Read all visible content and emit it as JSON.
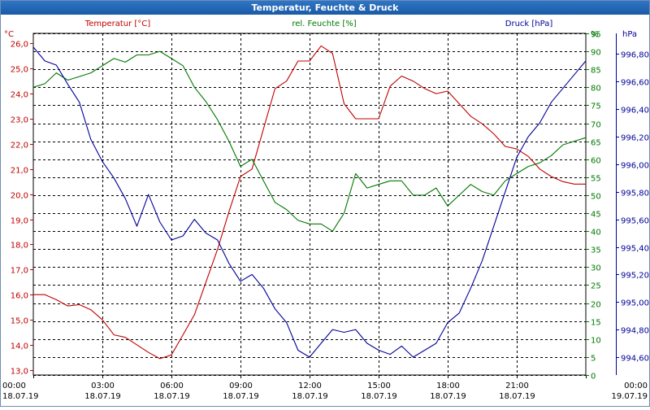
{
  "window": {
    "title": "Temperatur, Feuchte & Druck"
  },
  "colors": {
    "temperature": "#c00000",
    "humidity": "#007700",
    "pressure": "#000099",
    "grid": "#000000",
    "text": "#000000"
  },
  "chart_data": {
    "type": "line",
    "title": "Temperatur, Feuchte & Druck",
    "grid": true,
    "x_ticks": [
      {
        "time": "00:00",
        "date": "18.07.19"
      },
      {
        "time": "03:00",
        "date": "18.07.19"
      },
      {
        "time": "06:00",
        "date": "18.07.19"
      },
      {
        "time": "09:00",
        "date": "18.07.19"
      },
      {
        "time": "12:00",
        "date": "18.07.19"
      },
      {
        "time": "15:00",
        "date": "18.07.19"
      },
      {
        "time": "18:00",
        "date": "18.07.19"
      },
      {
        "time": "21:00",
        "date": "18.07.19"
      },
      {
        "time": "00:00",
        "date": "19.07.19"
      }
    ],
    "xlim": [
      0,
      24
    ],
    "axes": {
      "temperature": {
        "label": "Temperatur [°C]",
        "unit": "°C",
        "ylim": [
          12.8,
          26.4
        ],
        "ticks": [
          "13,0",
          "14,0",
          "15,0",
          "16,0",
          "17,0",
          "18,0",
          "19,0",
          "20,0",
          "21,0",
          "22,0",
          "23,0",
          "24,0",
          "25,0",
          "26,0"
        ]
      },
      "humidity": {
        "label": "rel. Feuchte [%]",
        "unit": "%",
        "ylim": [
          0,
          95
        ],
        "ticks": [
          "0",
          "5",
          "10",
          "15",
          "20",
          "25",
          "30",
          "35",
          "40",
          "45",
          "50",
          "55",
          "60",
          "65",
          "70",
          "75",
          "80",
          "85",
          "90",
          "95"
        ]
      },
      "pressure": {
        "label": "Druck [hPa]",
        "unit": "hPa",
        "ylim": [
          994.47,
          996.95
        ],
        "ticks": [
          "994,60",
          "994,80",
          "995,00",
          "995,20",
          "995,40",
          "995,60",
          "995,80",
          "996,00",
          "996,20",
          "996,40",
          "996,60",
          "996,80"
        ]
      }
    },
    "series": [
      {
        "name": "Temperatur [°C]",
        "axis": "temperature",
        "x": [
          0,
          0.5,
          1,
          1.5,
          2,
          2.5,
          3,
          3.5,
          4,
          4.5,
          5,
          5.5,
          6,
          6.5,
          7,
          7.5,
          8,
          8.5,
          9,
          9.5,
          10,
          10.5,
          11,
          11.5,
          12,
          12.5,
          13,
          13.5,
          14,
          14.5,
          15,
          15.5,
          16,
          16.5,
          17,
          17.5,
          18,
          18.5,
          19,
          19.5,
          20,
          20.5,
          21,
          21.5,
          22,
          22.5,
          23,
          23.5,
          24
        ],
        "values": [
          16.0,
          16.0,
          15.8,
          15.55,
          15.6,
          15.4,
          15.0,
          14.4,
          14.3,
          14.0,
          13.7,
          13.45,
          13.6,
          14.4,
          15.2,
          16.5,
          17.8,
          19.3,
          20.7,
          21.0,
          22.6,
          24.2,
          24.5,
          25.3,
          25.3,
          25.9,
          25.6,
          23.6,
          23.0,
          23.0,
          23.0,
          24.3,
          24.7,
          24.5,
          24.2,
          24.0,
          24.1,
          23.6,
          23.1,
          22.8,
          22.4,
          21.9,
          21.8,
          21.5,
          21.0,
          20.7,
          20.5,
          20.4,
          20.4
        ]
      },
      {
        "name": "rel. Feuchte [%]",
        "axis": "humidity",
        "x": [
          0,
          0.5,
          1,
          1.5,
          2,
          2.5,
          3,
          3.5,
          4,
          4.5,
          5,
          5.5,
          6,
          6.5,
          7,
          7.5,
          8,
          8.5,
          9,
          9.5,
          10,
          10.5,
          11,
          11.5,
          12,
          12.5,
          13,
          13.5,
          14,
          14.5,
          15,
          15.5,
          16,
          16.5,
          17,
          17.5,
          18,
          18.5,
          19,
          19.5,
          20,
          20.5,
          21,
          21.5,
          22,
          22.5,
          23,
          23.5,
          24
        ],
        "values": [
          80,
          81,
          84,
          82,
          83,
          84,
          86,
          88,
          87,
          89,
          89,
          90,
          88,
          86,
          80,
          76,
          71,
          65,
          58,
          60,
          54,
          48,
          46,
          43,
          42,
          42,
          40,
          45,
          56,
          52,
          53,
          54,
          54,
          50,
          50,
          52,
          47,
          50,
          53,
          51,
          50,
          54,
          56,
          58,
          59,
          61,
          64,
          65,
          66
        ]
      },
      {
        "name": "Druck [hPa]",
        "axis": "pressure",
        "x": [
          0,
          0.5,
          1,
          1.5,
          2,
          2.5,
          3,
          3.5,
          4,
          4.5,
          5,
          5.5,
          6,
          6.5,
          7,
          7.5,
          8,
          8.5,
          9,
          9.5,
          10,
          10.5,
          11,
          11.5,
          12,
          12.5,
          13,
          13.5,
          14,
          14.5,
          15,
          15.5,
          16,
          16.5,
          17,
          17.5,
          18,
          18.5,
          19,
          19.5,
          20,
          20.5,
          21,
          21.5,
          22,
          22.5,
          23,
          23.5,
          24
        ],
        "values": [
          996.85,
          996.75,
          996.72,
          996.58,
          996.45,
          996.18,
          996.02,
          995.9,
          995.75,
          995.55,
          995.78,
          995.58,
          995.45,
          995.48,
          995.6,
          995.5,
          995.45,
          995.28,
          995.15,
          995.2,
          995.1,
          994.95,
          994.85,
          994.65,
          994.6,
          994.7,
          994.8,
          994.78,
          994.8,
          994.7,
          994.65,
          994.62,
          994.68,
          994.6,
          994.65,
          994.7,
          994.85,
          994.92,
          995.1,
          995.3,
          995.55,
          995.8,
          996.05,
          996.2,
          996.3,
          996.45,
          996.55,
          996.65,
          996.75
        ]
      }
    ]
  }
}
